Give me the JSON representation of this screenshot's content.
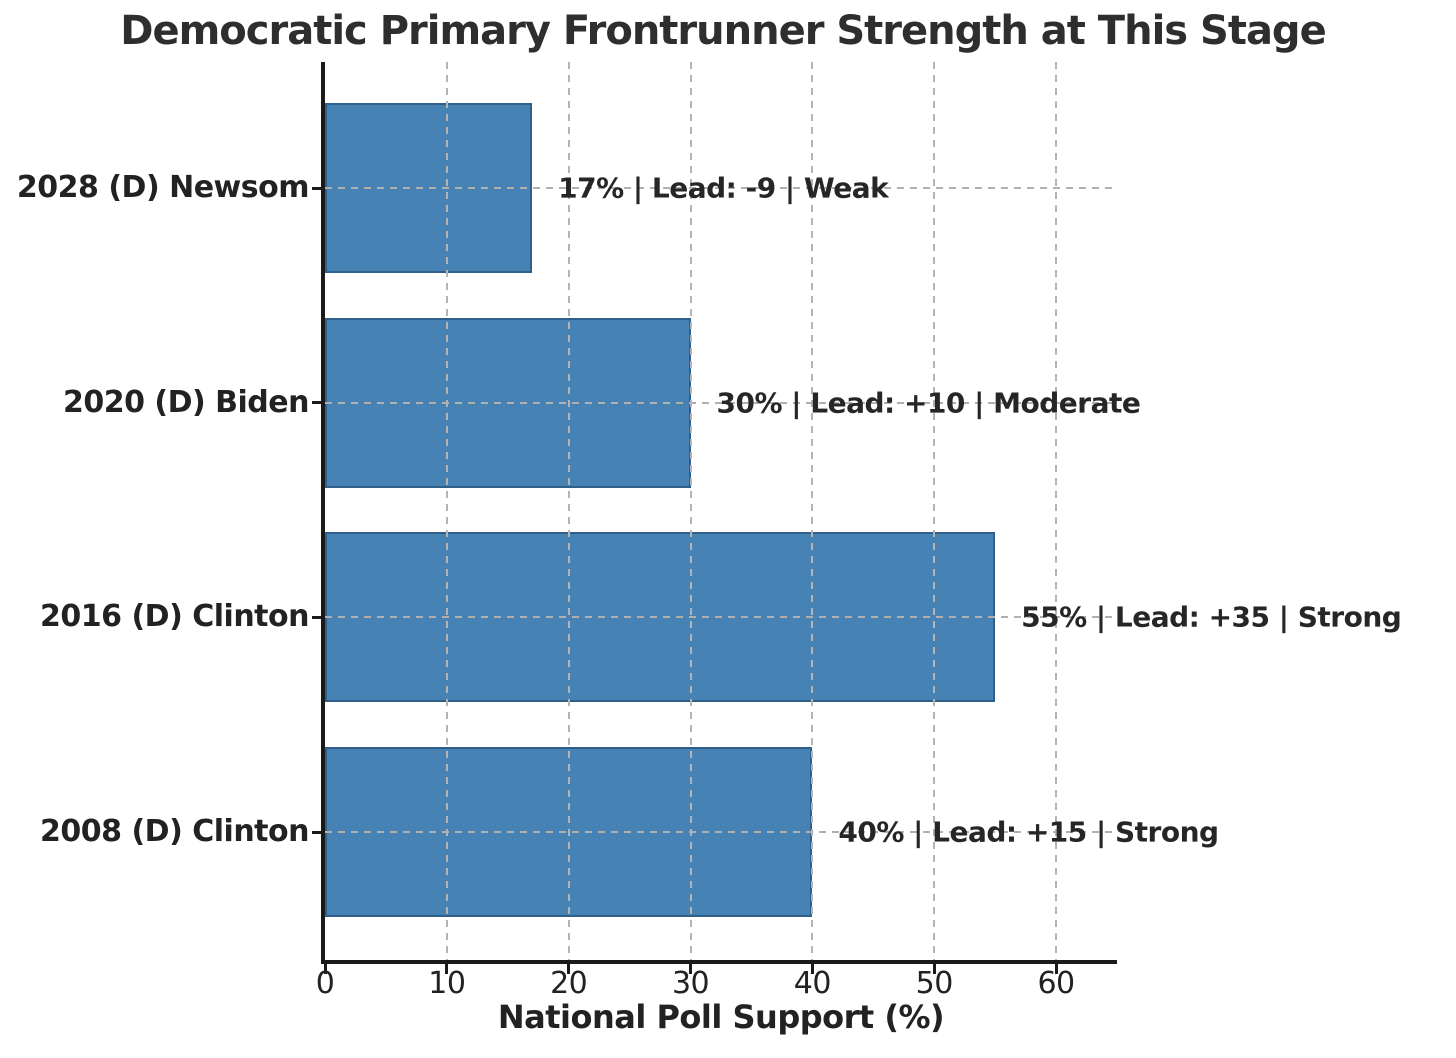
{
  "title": "Democratic Primary Frontrunner Strength at This Stage",
  "chart_data": {
    "type": "bar",
    "orientation": "horizontal",
    "title": "Democratic Primary Frontrunner Strength at This Stage",
    "xlabel": "National Poll Support (%)",
    "ylabel": "",
    "categories": [
      "2028 (D) Newsom",
      "2020 (D) Biden",
      "2016 (D) Clinton",
      "2008 (D) Clinton"
    ],
    "values": [
      17,
      30,
      55,
      40
    ],
    "annotations": [
      "17% | Lead: -9 | Weak",
      "30% | Lead: +10 | Moderate",
      "55% | Lead: +35 | Strong",
      "40% | Lead: +15 | Strong"
    ],
    "leads": [
      -9,
      10,
      35,
      15
    ],
    "strength_ratings": [
      "Weak",
      "Moderate",
      "Strong",
      "Strong"
    ],
    "xlim": [
      0,
      65
    ],
    "xticks": [
      0,
      10,
      20,
      30,
      40,
      50,
      60
    ],
    "grid": "dashed",
    "legend": "none",
    "bar_color": "#4682b4",
    "grid_color": "#b0b0b0",
    "text_color": "#222222"
  }
}
